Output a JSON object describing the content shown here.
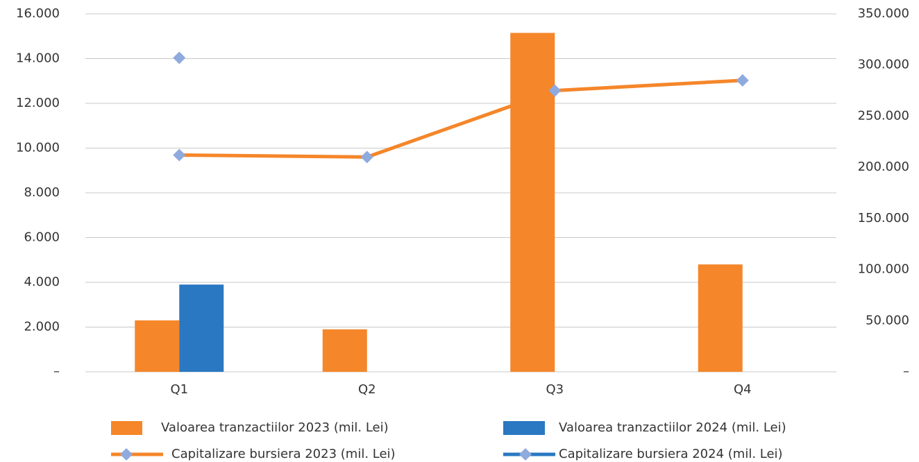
{
  "chart_data": {
    "type": "bar",
    "categories": [
      "Q1",
      "Q2",
      "Q3",
      "Q4"
    ],
    "series": [
      {
        "name": "Valoarea tranzactiilor 2023 (mil. Lei)",
        "type": "bar",
        "color": "#f5862a",
        "values": [
          2300,
          1900,
          15150,
          4800
        ]
      },
      {
        "name": "Valoarea tranzactiilor 2024 (mil. Lei)",
        "type": "bar",
        "color": "#2a78c2",
        "values": [
          3900,
          null,
          null,
          null
        ]
      },
      {
        "name": "Capitalizare bursiera 2023 (mil. Lei)",
        "type": "line",
        "axis": "y2",
        "color": "#f5862a",
        "marker_color": "#8faadc",
        "values": [
          212000,
          210000,
          275000,
          285000
        ]
      },
      {
        "name": "Capitalizare bursiera 2024 (mil. Lei)",
        "type": "line",
        "axis": "y2",
        "color": "#2a78c2",
        "marker_color": "#8faadc",
        "values": [
          307000,
          null,
          null,
          null
        ]
      }
    ],
    "ylim": [
      0,
      16000
    ],
    "yticks": [
      {
        "value": 0,
        "label": "–"
      },
      {
        "value": 2000,
        "label": "2.000"
      },
      {
        "value": 4000,
        "label": "4.000"
      },
      {
        "value": 6000,
        "label": "6.000"
      },
      {
        "value": 8000,
        "label": "8.000"
      },
      {
        "value": 10000,
        "label": "10.000"
      },
      {
        "value": 12000,
        "label": "12.000"
      },
      {
        "value": 14000,
        "label": "14.000"
      },
      {
        "value": 16000,
        "label": "16.000"
      }
    ],
    "y2lim": [
      0,
      350000
    ],
    "y2ticks": [
      {
        "value": 0,
        "label": "–"
      },
      {
        "value": 50000,
        "label": "50.000"
      },
      {
        "value": 100000,
        "label": "100.000"
      },
      {
        "value": 150000,
        "label": "150.000"
      },
      {
        "value": 200000,
        "label": "200.000"
      },
      {
        "value": 250000,
        "label": "250.000"
      },
      {
        "value": 300000,
        "label": "300.000"
      },
      {
        "value": 350000,
        "label": "350.000"
      }
    ],
    "grid": true,
    "legend": "bottom"
  }
}
